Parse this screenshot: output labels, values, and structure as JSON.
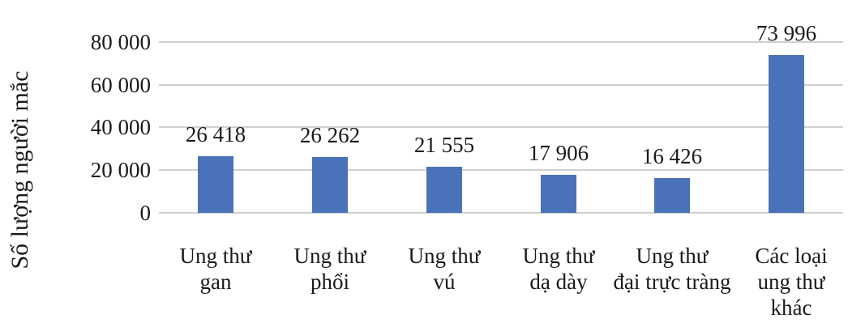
{
  "chart_data": {
    "type": "bar",
    "title": "",
    "xlabel": "",
    "ylabel": "Số lượng người mắc",
    "ylim": [
      0,
      80000
    ],
    "yticks": [
      "0",
      "20 000",
      "40 000",
      "60 000",
      "80 000"
    ],
    "grid": true,
    "legend": "none",
    "bar_color": "#4a72b8",
    "categories": [
      "Ung thư gan",
      "Ung thư phổi",
      "Ung thư vú",
      "Ung thư dạ dày",
      "Ung thư đại trực tràng",
      "Các loại ung thư khác"
    ],
    "category_lines": [
      [
        "Ung thư",
        "gan"
      ],
      [
        "Ung thư",
        "phổi"
      ],
      [
        "Ung thư",
        "vú"
      ],
      [
        "Ung thư",
        "dạ dày"
      ],
      [
        "Ung thư",
        "đại trực tràng"
      ],
      [
        "Các loại",
        "ung thư",
        "khác"
      ]
    ],
    "values": [
      26418,
      26262,
      21555,
      17906,
      16426,
      73996
    ],
    "value_labels": [
      "26 418",
      "26 262",
      "21 555",
      "17 906",
      "16 426",
      "73 996"
    ]
  }
}
